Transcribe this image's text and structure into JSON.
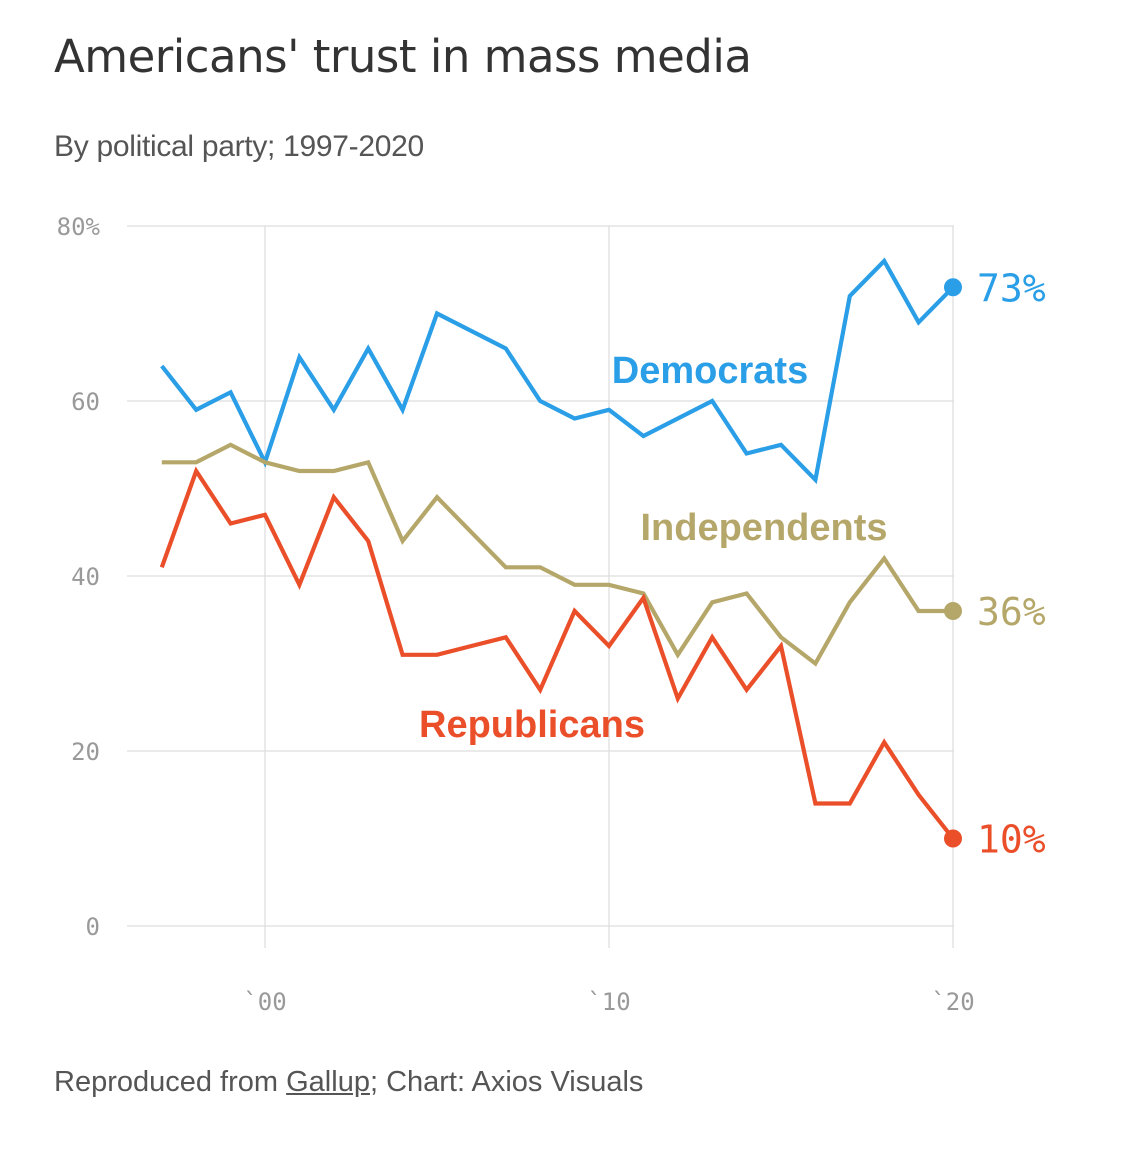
{
  "chart_data": {
    "type": "line",
    "title": "Americans' trust in mass media",
    "subtitle": "By political party; 1997-2020",
    "x": [
      1997,
      1998,
      1999,
      2000,
      2001,
      2002,
      2003,
      2004,
      2005,
      2006,
      2007,
      2008,
      2009,
      2010,
      2011,
      2012,
      2013,
      2014,
      2015,
      2016,
      2017,
      2018,
      2019,
      2020
    ],
    "x_ticks": [
      2000,
      2010,
      2020
    ],
    "x_tick_labels": [
      "`00",
      "`10",
      "`20"
    ],
    "xlim": [
      1996.5,
      2021
    ],
    "ylim": [
      0,
      80
    ],
    "y_ticks": [
      0,
      20,
      40,
      60,
      80
    ],
    "y_tick_labels": [
      "0",
      "20",
      "40",
      "60",
      "80%"
    ],
    "grid": true,
    "series": [
      {
        "name": "Democrats",
        "color": "#2a9ee6",
        "values": [
          64,
          59,
          61,
          53,
          65,
          59,
          66,
          59,
          70,
          68,
          66,
          60,
          58,
          59,
          56,
          58,
          60,
          54,
          55,
          51,
          72,
          76,
          69,
          73
        ],
        "end_label": "73%"
      },
      {
        "name": "Independents",
        "color": "#b5a76a",
        "values": [
          53,
          53,
          55,
          53,
          52,
          52,
          53,
          44,
          49,
          45,
          41,
          41,
          39,
          39,
          38,
          31,
          37,
          38,
          33,
          30,
          37,
          42,
          36,
          36
        ],
        "end_label": "36%"
      },
      {
        "name": "Republicans",
        "color": "#ea4f2a",
        "values": [
          41,
          52,
          46,
          47,
          39,
          49,
          44,
          31,
          31,
          32,
          33,
          27,
          36,
          32,
          37.5,
          26,
          33,
          27,
          32,
          14,
          14,
          21,
          15,
          10
        ],
        "end_label": "10%"
      }
    ]
  },
  "footer": {
    "prefix": "Reproduced from ",
    "source": "Gallup",
    "suffix": "; Chart: Axios Visuals"
  }
}
